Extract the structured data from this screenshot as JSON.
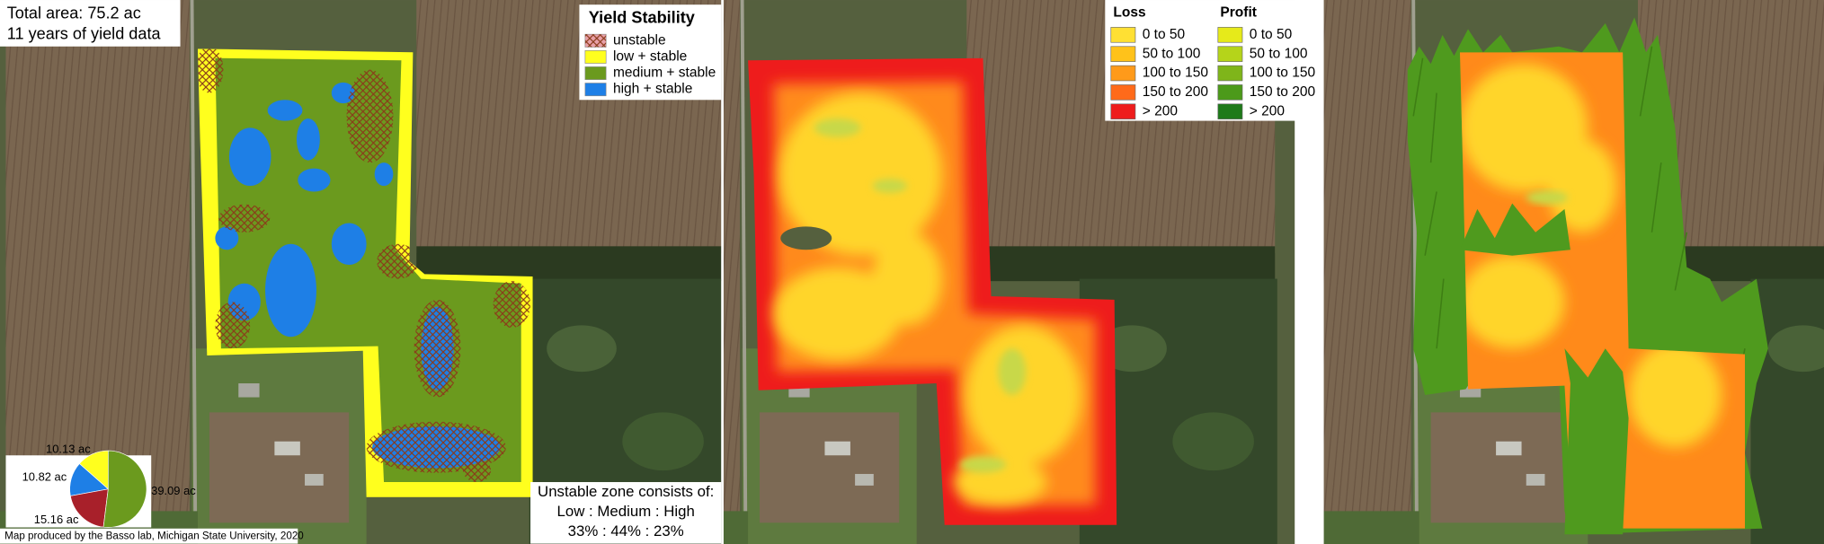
{
  "left_panel": {
    "info": [
      "Total area: 75.2 ac",
      "11 years of yield data"
    ],
    "legend": {
      "title": "Yield Stability",
      "items": [
        {
          "label": "unstable",
          "color": "#e8a0a8"
        },
        {
          "label": "low + stable",
          "color": "#ffff1e"
        },
        {
          "label": "medium + stable",
          "color": "#6b9a1e"
        },
        {
          "label": "high + stable",
          "color": "#1e7fe6"
        }
      ]
    },
    "note": [
      "Unstable zone consists of:",
      "Low : Medium : High",
      "33% : 44% : 23%"
    ],
    "credit": "Map produced by the Basso lab, Michigan State University, 2020"
  },
  "chart_data": {
    "type": "pie",
    "values": [
      10.13,
      10.82,
      15.16,
      39.09
    ],
    "value_labels": [
      "10.13 ac",
      "10.82 ac",
      "15.16 ac",
      "39.09 ac"
    ],
    "colors": [
      "#ffff1e",
      "#1e7fe6",
      "#a8202a",
      "#6b9a1e"
    ]
  },
  "middle_panel": {
    "legend": [
      {
        "title": "Loss",
        "items": [
          {
            "label": "0 to 50",
            "color": "#ffe033"
          },
          {
            "label": "50 to 100",
            "color": "#ffc21a"
          },
          {
            "label": "100 to 150",
            "color": "#ff9a1a"
          },
          {
            "label": "150 to 200",
            "color": "#ff6a1a"
          },
          {
            "label": "> 200",
            "color": "#ee1c1c"
          }
        ]
      },
      {
        "title": "Profit",
        "items": [
          {
            "label": "0 to 50",
            "color": "#e6ea1a"
          },
          {
            "label": "50 to 100",
            "color": "#b5d41a"
          },
          {
            "label": "100 to 150",
            "color": "#7fb51a"
          },
          {
            "label": "150 to 200",
            "color": "#4c9a1a"
          },
          {
            "label": "> 200",
            "color": "#1e7a1a"
          }
        ]
      }
    ]
  }
}
